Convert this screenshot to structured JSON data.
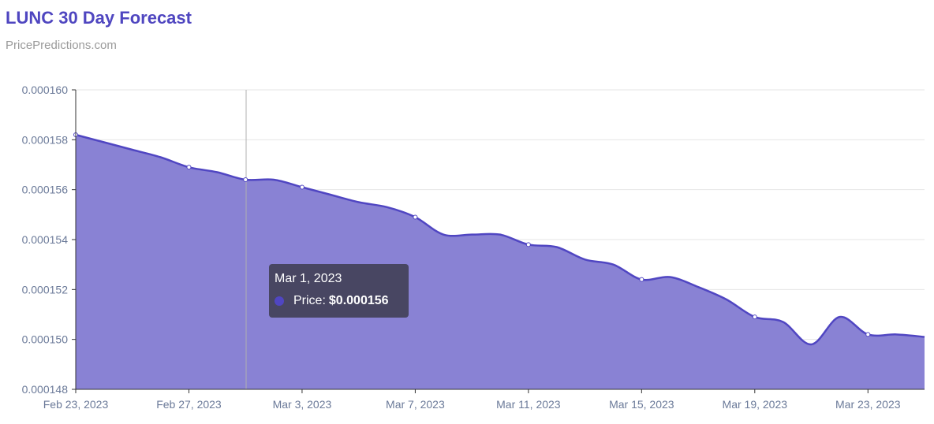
{
  "chart_data": {
    "type": "area",
    "title": "LUNC 30 Day Forecast",
    "subtitle": "PricePredictions.com",
    "xlabel": "",
    "ylabel": "",
    "ylim": [
      0.000148,
      0.00016
    ],
    "y_ticks": [
      "0.000148",
      "0.000150",
      "0.000152",
      "0.000154",
      "0.000156",
      "0.000158",
      "0.000160"
    ],
    "x_ticks": [
      "Feb 23, 2023",
      "Feb 27, 2023",
      "Mar 3, 2023",
      "Mar 7, 2023",
      "Mar 11, 2023",
      "Mar 15, 2023",
      "Mar 19, 2023",
      "Mar 23, 2023"
    ],
    "grid": true,
    "x": [
      "Feb 23",
      "Feb 24",
      "Feb 25",
      "Feb 26",
      "Feb 27",
      "Feb 28",
      "Mar 1",
      "Mar 2",
      "Mar 3",
      "Mar 4",
      "Mar 5",
      "Mar 6",
      "Mar 7",
      "Mar 8",
      "Mar 9",
      "Mar 10",
      "Mar 11",
      "Mar 12",
      "Mar 13",
      "Mar 14",
      "Mar 15",
      "Mar 16",
      "Mar 17",
      "Mar 18",
      "Mar 19",
      "Mar 20",
      "Mar 21",
      "Mar 22",
      "Mar 23",
      "Mar 24",
      "Mar 25"
    ],
    "series": [
      {
        "name": "Price",
        "values": [
          0.0001582,
          0.0001579,
          0.0001576,
          0.0001573,
          0.0001569,
          0.0001567,
          0.0001564,
          0.0001564,
          0.0001561,
          0.0001558,
          0.0001555,
          0.0001553,
          0.0001549,
          0.0001542,
          0.0001542,
          0.0001542,
          0.0001538,
          0.0001537,
          0.0001532,
          0.000153,
          0.0001524,
          0.0001525,
          0.0001521,
          0.0001516,
          0.0001509,
          0.0001507,
          0.0001498,
          0.0001509,
          0.0001502,
          0.0001502,
          0.0001501
        ]
      }
    ],
    "colors": {
      "line": "#5046c2",
      "fill": "#8982d4",
      "title": "#4f46c0"
    },
    "tooltip": {
      "date": "Mar 1, 2023",
      "label": "Price:",
      "value": "$0.000156"
    }
  }
}
